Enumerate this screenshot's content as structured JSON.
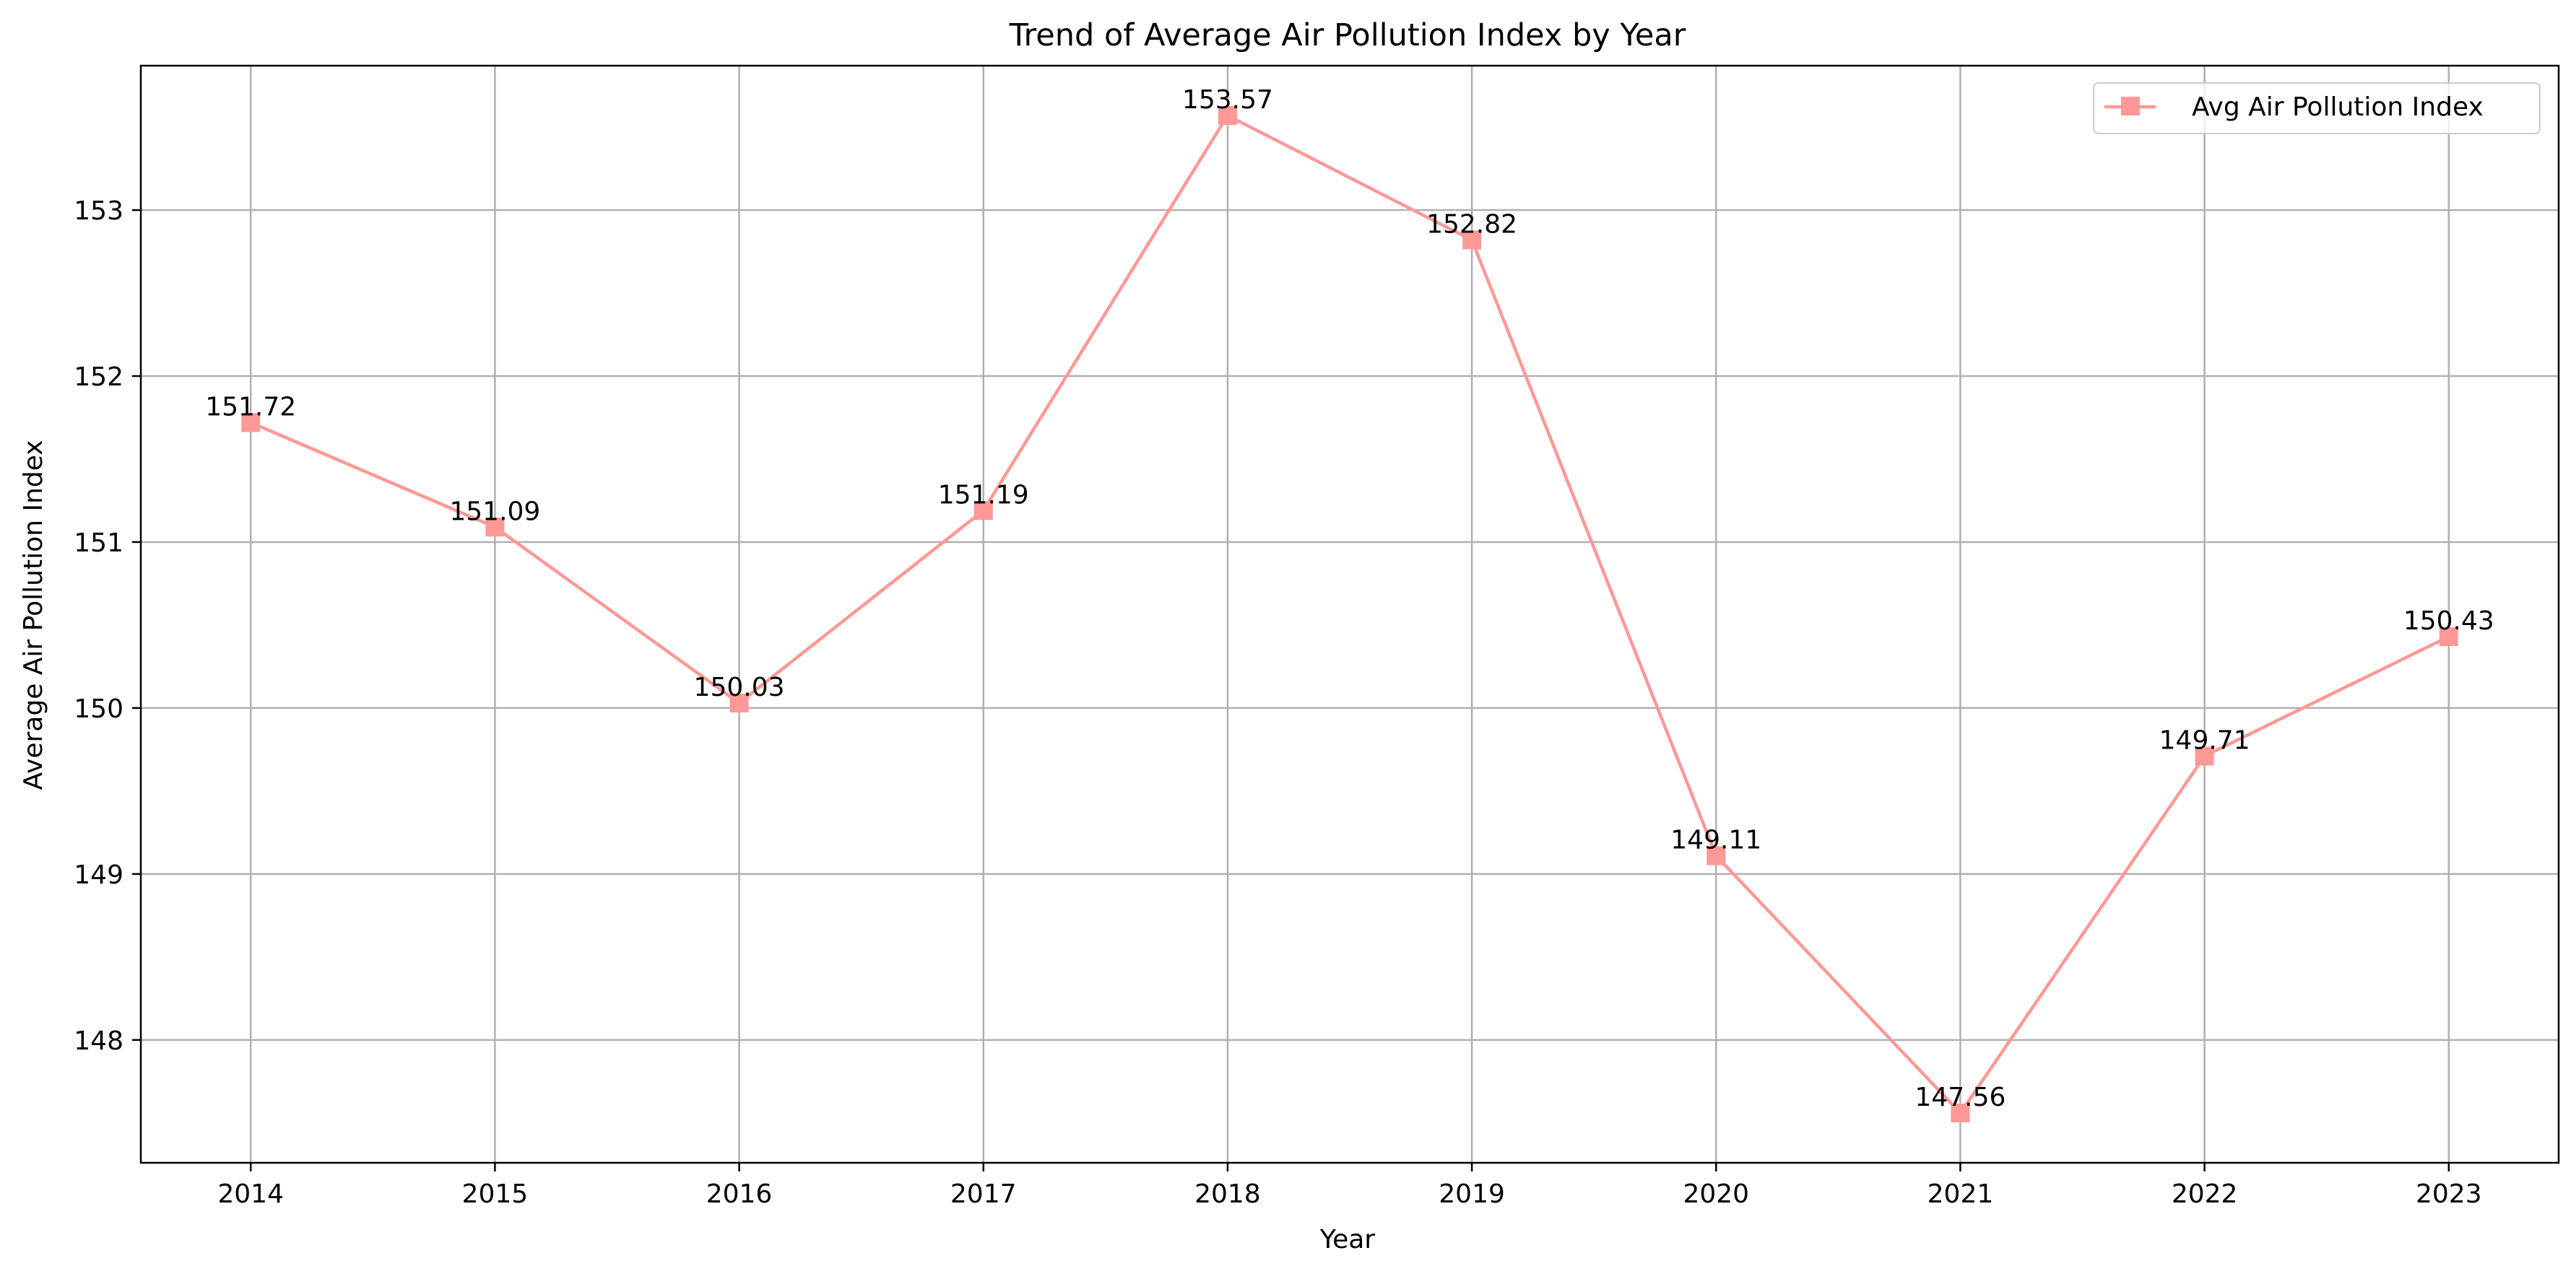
{
  "chart_data": {
    "type": "line",
    "title": "Trend of Average Air Pollution Index by Year",
    "xlabel": "Year",
    "ylabel": "Average Air Pollution Index",
    "x": [
      2014,
      2015,
      2016,
      2017,
      2018,
      2019,
      2020,
      2021,
      2022,
      2023
    ],
    "x_tick_labels": [
      "2014",
      "2015",
      "2016",
      "2017",
      "2018",
      "2019",
      "2020",
      "2021",
      "2022",
      "2023"
    ],
    "y_ticks": [
      148,
      149,
      150,
      151,
      152,
      153
    ],
    "y_tick_labels": [
      "148",
      "149",
      "150",
      "151",
      "152",
      "153"
    ],
    "xlim": [
      2013.55,
      2023.45
    ],
    "ylim": [
      147.26,
      153.87
    ],
    "grid": true,
    "legend_position": "top-right",
    "series": [
      {
        "name": "Avg Air Pollution Index",
        "color": "#ff9896",
        "marker": "square",
        "values": [
          151.72,
          151.09,
          150.03,
          151.19,
          153.57,
          152.82,
          149.11,
          147.56,
          149.71,
          150.43
        ],
        "data_labels": [
          "151.72",
          "151.09",
          "150.03",
          "151.19",
          "153.57",
          "152.82",
          "149.11",
          "147.56",
          "149.71",
          "150.43"
        ]
      }
    ]
  }
}
